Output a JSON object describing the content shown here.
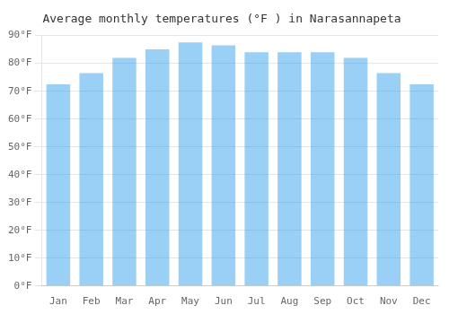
{
  "chart_data": {
    "type": "bar",
    "title": "Average monthly temperatures (°F ) in Narasannapeta",
    "categories": [
      "Jan",
      "Feb",
      "Mar",
      "Apr",
      "May",
      "Jun",
      "Jul",
      "Aug",
      "Sep",
      "Oct",
      "Nov",
      "Dec"
    ],
    "values": [
      72.5,
      76.5,
      82.0,
      85.0,
      87.5,
      86.5,
      84.0,
      84.0,
      84.0,
      82.0,
      76.5,
      72.5
    ],
    "ylim": [
      0,
      90
    ],
    "yticks": [
      {
        "value": 0,
        "label": "0°F"
      },
      {
        "value": 10,
        "label": "10°F"
      },
      {
        "value": 20,
        "label": "20°F"
      },
      {
        "value": 30,
        "label": "30°F"
      },
      {
        "value": 40,
        "label": "40°F"
      },
      {
        "value": 50,
        "label": "50°F"
      },
      {
        "value": 60,
        "label": "60°F"
      },
      {
        "value": 70,
        "label": "70°F"
      },
      {
        "value": 80,
        "label": "80°F"
      },
      {
        "value": 90,
        "label": "90°F"
      }
    ],
    "grid": true
  }
}
